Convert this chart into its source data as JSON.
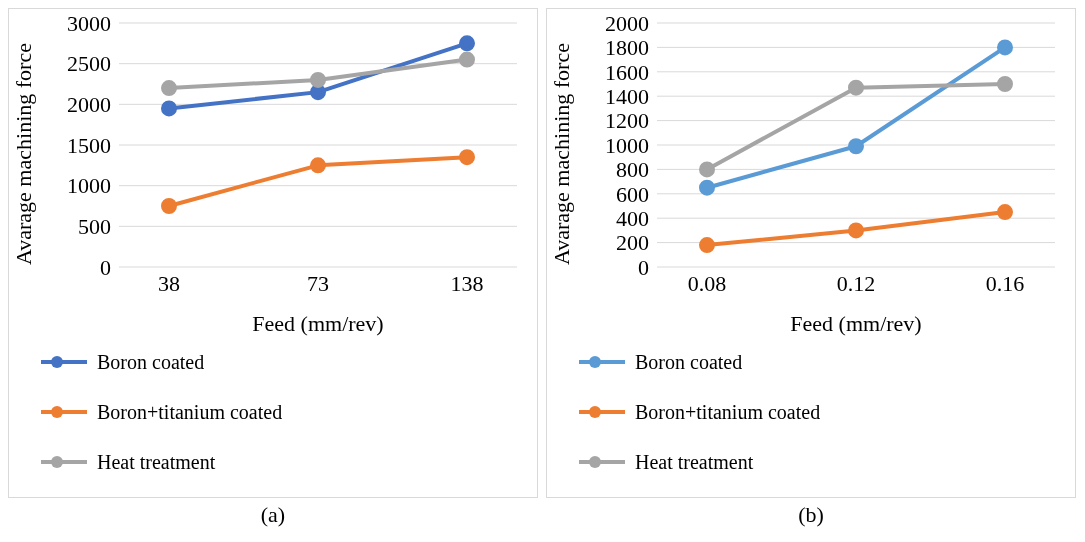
{
  "chart_data": [
    {
      "type": "line",
      "xlabel": "Feed (mm/rev)",
      "ylabel": "Avarage machining force",
      "categories": [
        "38",
        "73",
        "138"
      ],
      "series": [
        {
          "name": "Boron coated",
          "color": "#4472c4",
          "values": [
            1950,
            2150,
            2750
          ]
        },
        {
          "name": "Boron+titanium coated",
          "color": "#ed7d31",
          "values": [
            750,
            1250,
            1350
          ]
        },
        {
          "name": "Heat treatment",
          "color": "#a5a5a5",
          "values": [
            2200,
            2300,
            2550
          ]
        }
      ],
      "ylim": [
        0,
        3000
      ],
      "yticks": [
        0,
        500,
        1000,
        1500,
        2000,
        2500,
        3000
      ],
      "grid": "y",
      "legend": "bottom left",
      "marker": "circle",
      "line_style": "solid",
      "annotations": [
        "(a)"
      ]
    },
    {
      "type": "line",
      "xlabel": "Feed (mm/rev)",
      "ylabel": "Avarage machining force",
      "categories": [
        "0.08",
        "0.12",
        "0.16"
      ],
      "series": [
        {
          "name": "Boron coated",
          "color": "#5b9bd5",
          "values": [
            650,
            990,
            1800
          ]
        },
        {
          "name": "Boron+titanium coated",
          "color": "#ed7d31",
          "values": [
            180,
            300,
            450
          ]
        },
        {
          "name": "Heat treatment",
          "color": "#a5a5a5",
          "values": [
            800,
            1470,
            1500
          ]
        }
      ],
      "ylim": [
        0,
        2000
      ],
      "yticks": [
        0,
        200,
        400,
        600,
        800,
        1000,
        1200,
        1400,
        1600,
        1800,
        2000
      ],
      "grid": "y",
      "legend": "bottom left",
      "marker": "circle",
      "line_style": "solid",
      "annotations": [
        "(b)"
      ]
    }
  ]
}
